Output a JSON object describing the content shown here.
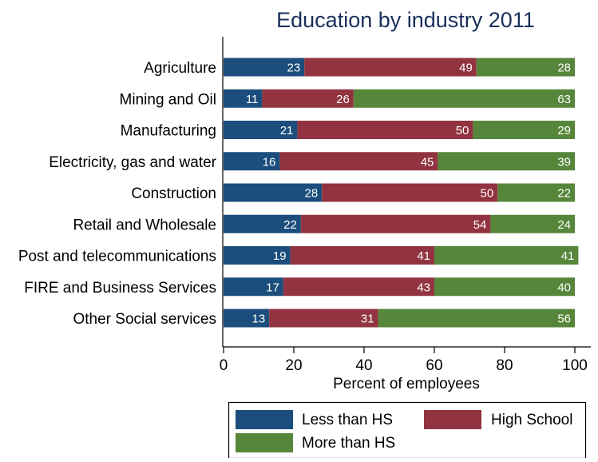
{
  "chart_data": {
    "type": "bar",
    "orientation": "horizontal",
    "stacked": true,
    "title": "Education by industry 2011",
    "xlabel": "Percent of employees",
    "ylabel": "",
    "xlim": [
      0,
      100
    ],
    "xticks": [
      0,
      20,
      40,
      60,
      80,
      100
    ],
    "grid": false,
    "legend_position": "bottom",
    "categories": [
      "Agriculture",
      "Mining and Oil",
      "Manufacturing",
      "Electricity, gas and water",
      "Construction",
      "Retail and Wholesale",
      "Post and telecommunications",
      "FIRE and Business Services",
      "Other Social services"
    ],
    "series": [
      {
        "name": "Less than HS",
        "color": "#1b4e7c",
        "values": [
          23,
          11,
          21,
          16,
          28,
          22,
          19,
          17,
          13
        ]
      },
      {
        "name": "High School",
        "color": "#923340",
        "values": [
          49,
          26,
          50,
          45,
          50,
          54,
          41,
          43,
          31
        ]
      },
      {
        "name": "More than HS",
        "color": "#56863a",
        "values": [
          28,
          63,
          29,
          39,
          22,
          24,
          41,
          40,
          56
        ]
      }
    ]
  }
}
